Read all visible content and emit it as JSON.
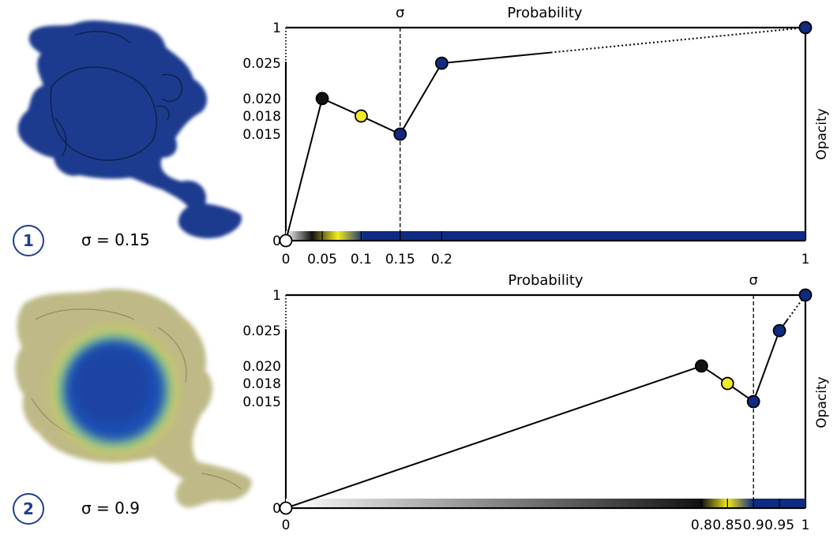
{
  "panels": [
    {
      "badge": "1",
      "sigma_text": "σ = 0.15"
    },
    {
      "badge": "2",
      "sigma_text": "σ = 0.9"
    }
  ],
  "colors": {
    "axis": "#000000",
    "blue": "#0f2a80",
    "yellow": "#f2ea20",
    "black": "#111111",
    "white": "#ffffff",
    "badge": "#1f3f8f",
    "volume1": "#1a3a8f",
    "volume2_outer": "#b3ad72",
    "volume2_inner": "#1e4fb4"
  },
  "chart_data": [
    {
      "type": "line",
      "title": "Probability",
      "xlabel": "",
      "ylabel": "Opacity",
      "sigma_label": "σ",
      "sigma": 0.15,
      "xlim": [
        0,
        1
      ],
      "x_ticks": [
        {
          "value": 0,
          "label": "0"
        },
        {
          "value": 0.05,
          "label": "0.05"
        },
        {
          "value": 0.1,
          "label": "0.1"
        },
        {
          "value": 0.15,
          "label": "0.15"
        },
        {
          "value": 0.2,
          "label": "0.2"
        },
        {
          "value": 1,
          "label": "1"
        }
      ],
      "y_ticks": [
        {
          "value": 0,
          "label": "0"
        },
        {
          "value": 0.015,
          "label": "0.015"
        },
        {
          "value": 0.018,
          "label": "0.018"
        },
        {
          "value": 0.02,
          "label": "0.020"
        },
        {
          "value": 0.025,
          "label": "0.025"
        },
        {
          "value": 1,
          "label": "1"
        }
      ],
      "points": [
        {
          "x": 0,
          "y": 0,
          "color": "white"
        },
        {
          "x": 0.07,
          "y": 0.02,
          "color": "black"
        },
        {
          "x": 0.145,
          "y": 0.018,
          "color": "yellow"
        },
        {
          "x": 0.22,
          "y": 0.015,
          "color": "blue"
        },
        {
          "x": 0.3,
          "y": 0.025,
          "color": "blue"
        },
        {
          "x": 1,
          "y": 1,
          "color": "blue"
        }
      ],
      "colorbar": [
        {
          "x": 0,
          "color": "white"
        },
        {
          "x": 0.05,
          "color": "black"
        },
        {
          "x": 0.1,
          "color": "yellow"
        },
        {
          "x": 0.15,
          "color": "blue"
        },
        {
          "x": 1,
          "color": "blue"
        }
      ]
    },
    {
      "type": "line",
      "title": "Probability",
      "xlabel": "",
      "ylabel": "Opacity",
      "sigma_label": "σ",
      "sigma": 0.9,
      "xlim": [
        0,
        1
      ],
      "x_ticks": [
        {
          "value": 0,
          "label": "0"
        },
        {
          "value": 0.8,
          "label": "0.8"
        },
        {
          "value": 0.85,
          "label": "0.85"
        },
        {
          "value": 0.9,
          "label": "0.9"
        },
        {
          "value": 0.95,
          "label": "0.95"
        },
        {
          "value": 1,
          "label": "1"
        }
      ],
      "y_ticks": [
        {
          "value": 0,
          "label": "0"
        },
        {
          "value": 0.015,
          "label": "0.015"
        },
        {
          "value": 0.018,
          "label": "0.018"
        },
        {
          "value": 0.02,
          "label": "0.020"
        },
        {
          "value": 0.025,
          "label": "0.025"
        },
        {
          "value": 1,
          "label": "1"
        }
      ],
      "points": [
        {
          "x": 0,
          "y": 0,
          "color": "white"
        },
        {
          "x": 0.8,
          "y": 0.02,
          "color": "black"
        },
        {
          "x": 0.85,
          "y": 0.018,
          "color": "yellow"
        },
        {
          "x": 0.9,
          "y": 0.015,
          "color": "blue"
        },
        {
          "x": 0.95,
          "y": 0.025,
          "color": "blue"
        },
        {
          "x": 1,
          "y": 1,
          "color": "blue"
        }
      ],
      "colorbar": [
        {
          "x": 0,
          "color": "white"
        },
        {
          "x": 0.8,
          "color": "black"
        },
        {
          "x": 0.85,
          "color": "yellow"
        },
        {
          "x": 0.9,
          "color": "blue"
        },
        {
          "x": 1,
          "color": "blue"
        }
      ]
    }
  ]
}
